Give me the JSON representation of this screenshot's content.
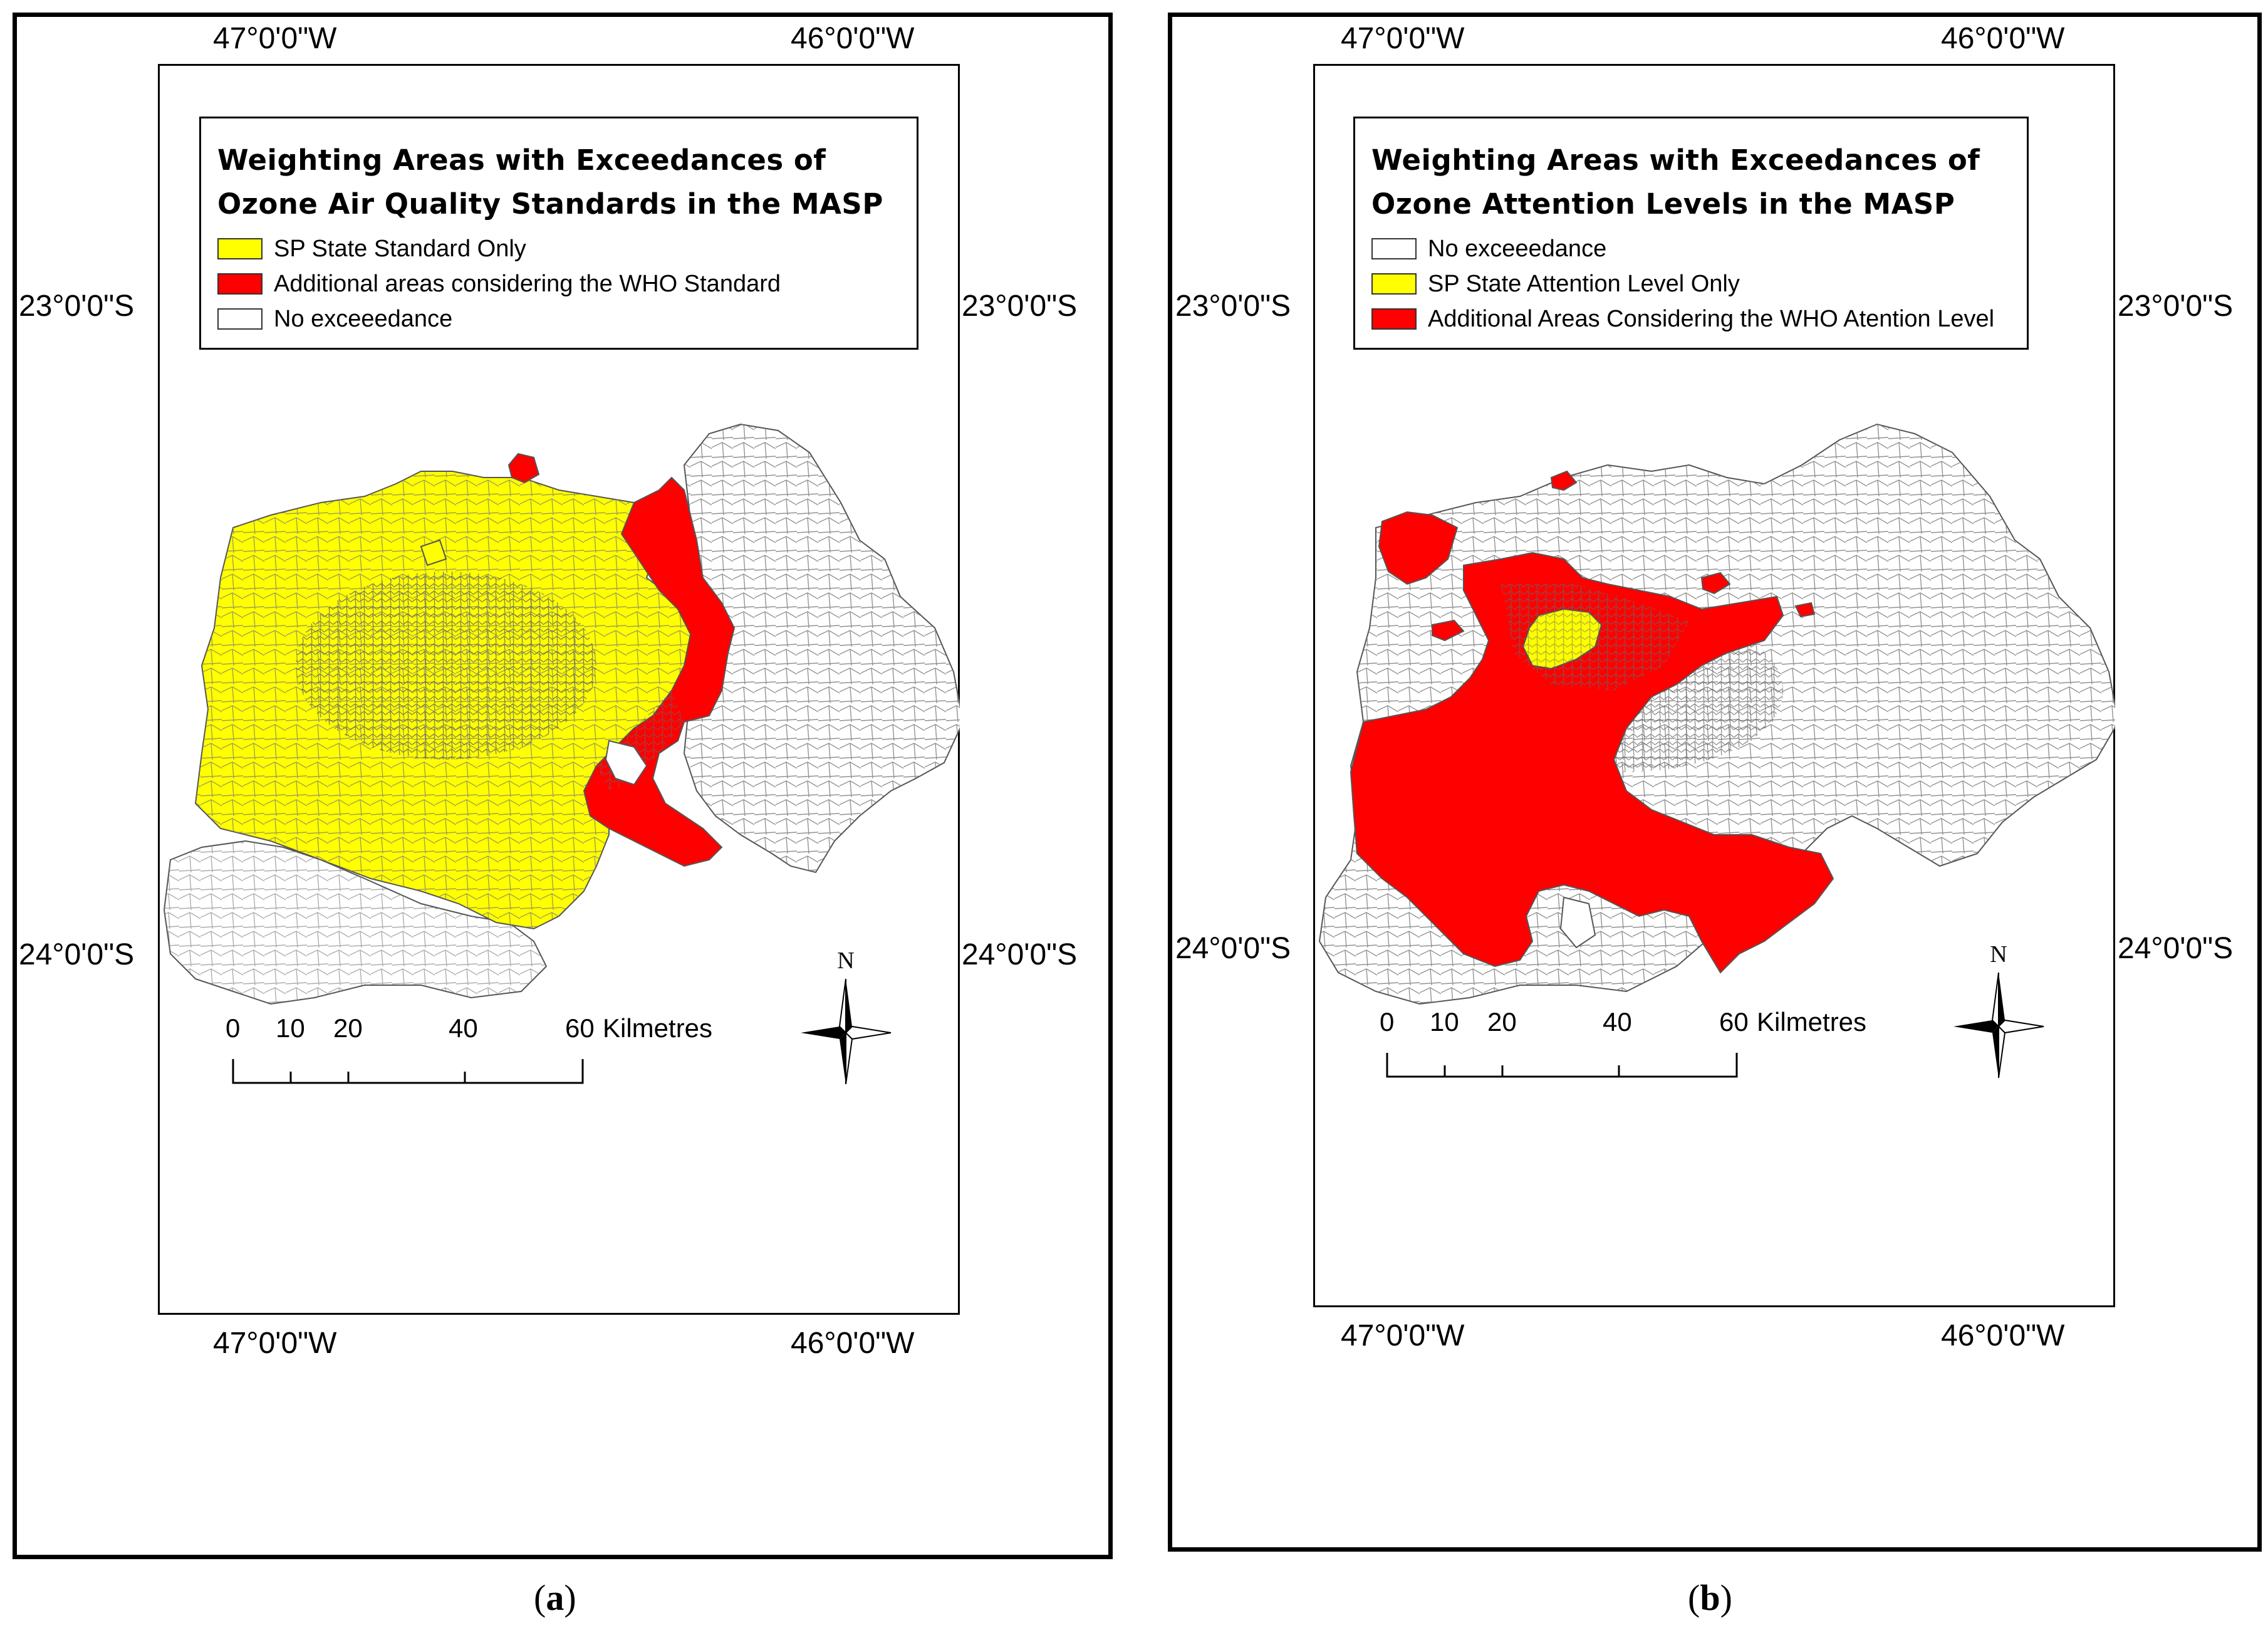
{
  "colors": {
    "yellow": "#ffff00",
    "red": "#ff0000",
    "none": "#ffffff",
    "border": "#6e6e6e"
  },
  "panel_a": {
    "caption_open": "(",
    "caption_letter": "a",
    "caption_close": ")",
    "coords": {
      "top_left": "47°0'0\"W",
      "top_right": "46°0'0\"W",
      "bottom_left": "47°0'0\"W",
      "bottom_right": "46°0'0\"W",
      "left_upper": "23°0'0\"S",
      "left_lower": "24°0'0\"S",
      "right_upper": "23°0'0\"S",
      "right_lower": "24°0'0\"S"
    },
    "legend": {
      "title_line1": "Weighting Areas with Exceedances of",
      "title_line2": "Ozone Air Quality Standards in the MASP",
      "items": [
        {
          "label": "SP State Standard Only",
          "color": "#ffff00"
        },
        {
          "label": "Additional areas considering the WHO Standard",
          "color": "#ff0000"
        },
        {
          "label": "No exceeedance",
          "color": "#ffffff"
        }
      ]
    },
    "scale": {
      "ticks": [
        "0",
        "10",
        "20",
        "40",
        "60"
      ],
      "unit": "Kilmetres"
    },
    "north": "N"
  },
  "panel_b": {
    "caption_open": "(",
    "caption_letter": "b",
    "caption_close": ")",
    "coords": {
      "top_left": "47°0'0\"W",
      "top_right": "46°0'0\"W",
      "bottom_left": "47°0'0\"W",
      "bottom_right": "46°0'0\"W",
      "left_upper": "23°0'0\"S",
      "left_lower": "24°0'0\"S",
      "right_upper": "23°0'0\"S",
      "right_lower": "24°0'0\"S"
    },
    "legend": {
      "title_line1": "Weighting Areas with Exceedances of",
      "title_line2": "Ozone Attention Levels in the MASP",
      "items": [
        {
          "label": "No exceeedance",
          "color": "#ffffff"
        },
        {
          "label": "SP State Attention Level Only",
          "color": "#ffff00"
        },
        {
          "label": "Additional Areas Considering the WHO Atention Level",
          "color": "#ff0000"
        }
      ]
    },
    "scale": {
      "ticks": [
        "0",
        "10",
        "20",
        "40",
        "60"
      ],
      "unit": "Kilmetres"
    },
    "north": "N"
  }
}
